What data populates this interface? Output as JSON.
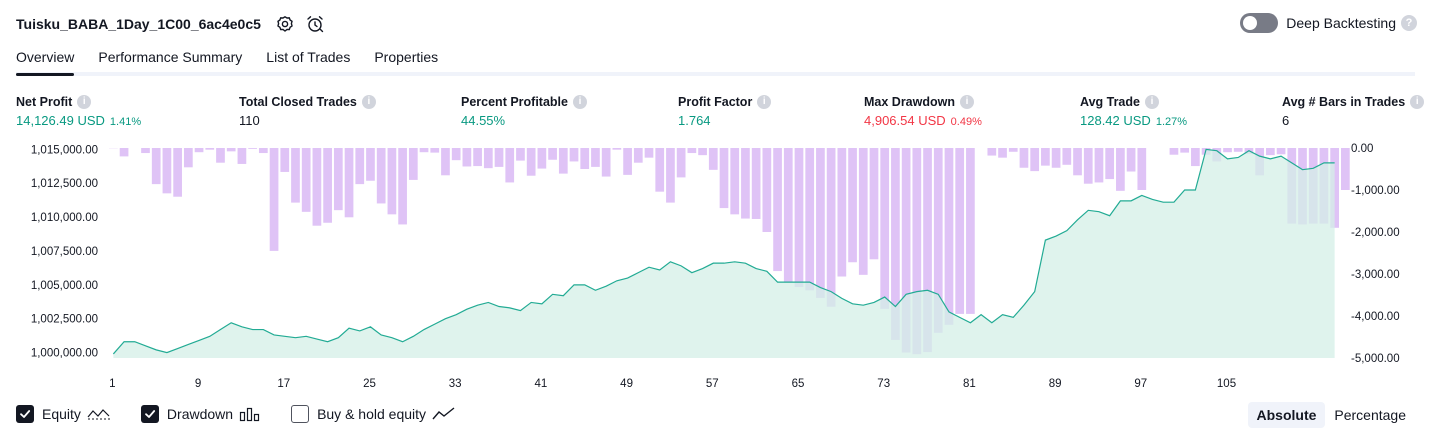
{
  "header": {
    "title": "Tuisku_BABA_1Day_1C00_6ac4e0c5",
    "deep_backtesting_label": "Deep Backtesting"
  },
  "tabs": [
    {
      "label": "Overview",
      "active": true
    },
    {
      "label": "Performance Summary",
      "active": false
    },
    {
      "label": "List of Trades",
      "active": false
    },
    {
      "label": "Properties",
      "active": false
    }
  ],
  "stats": [
    {
      "label": "Net Profit",
      "value": "14,126.49 USD",
      "pct": "1.41%",
      "color": "#089981"
    },
    {
      "label": "Total Closed Trades",
      "value": "110",
      "pct": "",
      "color": "#131722"
    },
    {
      "label": "Percent Profitable",
      "value": "44.55%",
      "pct": "",
      "color": "#089981"
    },
    {
      "label": "Profit Factor",
      "value": "1.764",
      "pct": "",
      "color": "#089981"
    },
    {
      "label": "Max Drawdown",
      "value": "4,906.54 USD",
      "pct": "0.49%",
      "color": "#f23645"
    },
    {
      "label": "Avg Trade",
      "value": "128.42 USD",
      "pct": "1.27%",
      "color": "#089981"
    },
    {
      "label": "Avg # Bars in Trades",
      "value": "6",
      "pct": "",
      "color": "#131722"
    }
  ],
  "legend": {
    "equity": {
      "label": "Equity",
      "checked": true
    },
    "drawdown": {
      "label": "Drawdown",
      "checked": true
    },
    "buy_hold": {
      "label": "Buy & hold equity",
      "checked": false
    }
  },
  "modes": {
    "absolute": "Absolute",
    "percentage": "Percentage",
    "active": "Absolute"
  },
  "colors": {
    "equity_line": "#22ab94",
    "equity_fill": "#d4efe7",
    "drawdown_bar": "#d9b8f5",
    "negative": "#f23645"
  },
  "chart_data": {
    "type": "line",
    "x_ticks": [
      "1",
      "9",
      "17",
      "25",
      "33",
      "41",
      "49",
      "57",
      "65",
      "73",
      "81",
      "89",
      "97",
      "105"
    ],
    "left_axis": {
      "ticks": [
        "1,015,000.00",
        "1,012,500.00",
        "1,010,000.00",
        "1,007,500.00",
        "1,005,000.00",
        "1,002,500.00",
        "1,000,000.00"
      ],
      "ylim": [
        999600,
        1015100
      ]
    },
    "right_axis": {
      "ticks": [
        "0.00",
        "-1,000.00",
        "-2,000.00",
        "-3,000.00",
        "-4,000.00",
        "-5,000.00"
      ],
      "ylim": [
        -5000,
        0
      ]
    },
    "series": [
      {
        "name": "Equity",
        "values": [
          999900,
          1000800,
          1000800,
          1000500,
          1000200,
          1000000,
          1000300,
          1000600,
          1000900,
          1001200,
          1001700,
          1002200,
          1001900,
          1001700,
          1001700,
          1001300,
          1001200,
          1001100,
          1001200,
          1001000,
          1000800,
          1001100,
          1001800,
          1001600,
          1001900,
          1001300,
          1001100,
          1000800,
          1001200,
          1001700,
          1002100,
          1002500,
          1002800,
          1003200,
          1003500,
          1003700,
          1003400,
          1003300,
          1003100,
          1003700,
          1003600,
          1004300,
          1004200,
          1005000,
          1005000,
          1004600,
          1004900,
          1005300,
          1005500,
          1005900,
          1006300,
          1006100,
          1006700,
          1006400,
          1005900,
          1006200,
          1006600,
          1006600,
          1006700,
          1006600,
          1006200,
          1006000,
          1005200,
          1005200,
          1005200,
          1005200,
          1004800,
          1004500,
          1004000,
          1003600,
          1003500,
          1003700,
          1004100,
          1003400,
          1004300,
          1004500,
          1004600,
          1004300,
          1003000,
          1002600,
          1002200,
          1002800,
          1002200,
          1002800,
          1002600,
          1003500,
          1004500,
          1008300,
          1008600,
          1009000,
          1009800,
          1010500,
          1010400,
          1010100,
          1011200,
          1011200,
          1011600,
          1011300,
          1011100,
          1011100,
          1012000,
          1012000,
          1015000,
          1014900,
          1014300,
          1014400,
          1014900,
          1014500,
          1014300,
          1014500,
          1014000,
          1013500,
          1013600,
          1014000,
          1014000
        ]
      },
      {
        "name": "Drawdown",
        "values": [
          -5,
          -200,
          0,
          -120,
          -860,
          -1080,
          -1160,
          -460,
          -100,
          -40,
          -350,
          -80,
          -380,
          -20,
          -120,
          -2450,
          -570,
          -1300,
          -1520,
          -1850,
          -1780,
          -1480,
          -1650,
          -860,
          -780,
          -1320,
          -1580,
          -1820,
          -760,
          -100,
          -110,
          -650,
          -290,
          -440,
          -430,
          -480,
          -450,
          -820,
          -300,
          -660,
          -490,
          -280,
          -610,
          -320,
          -500,
          -450,
          -680,
          -40,
          -640,
          -350,
          -230,
          -1040,
          -1300,
          -700,
          -120,
          -170,
          -520,
          -1430,
          -1580,
          -1680,
          -1690,
          -2000,
          -2930,
          -3180,
          -3310,
          -3390,
          -3570,
          -3780,
          -3060,
          -2720,
          -3020,
          -2650,
          -3830,
          -4570,
          -4870,
          -4910,
          -4860,
          -4400,
          -4210,
          -3950,
          -3950,
          0,
          -180,
          -230,
          -90,
          -470,
          -550,
          -420,
          -470,
          -400,
          -650,
          -850,
          -820,
          -740,
          -1020,
          -560,
          -1000,
          0,
          0,
          -160,
          -110,
          -430,
          -160,
          -320,
          -100,
          -90,
          -140,
          -650,
          -170,
          -150,
          -1800,
          -1820,
          -1800,
          -1800,
          -1900,
          -1000
        ]
      }
    ]
  }
}
